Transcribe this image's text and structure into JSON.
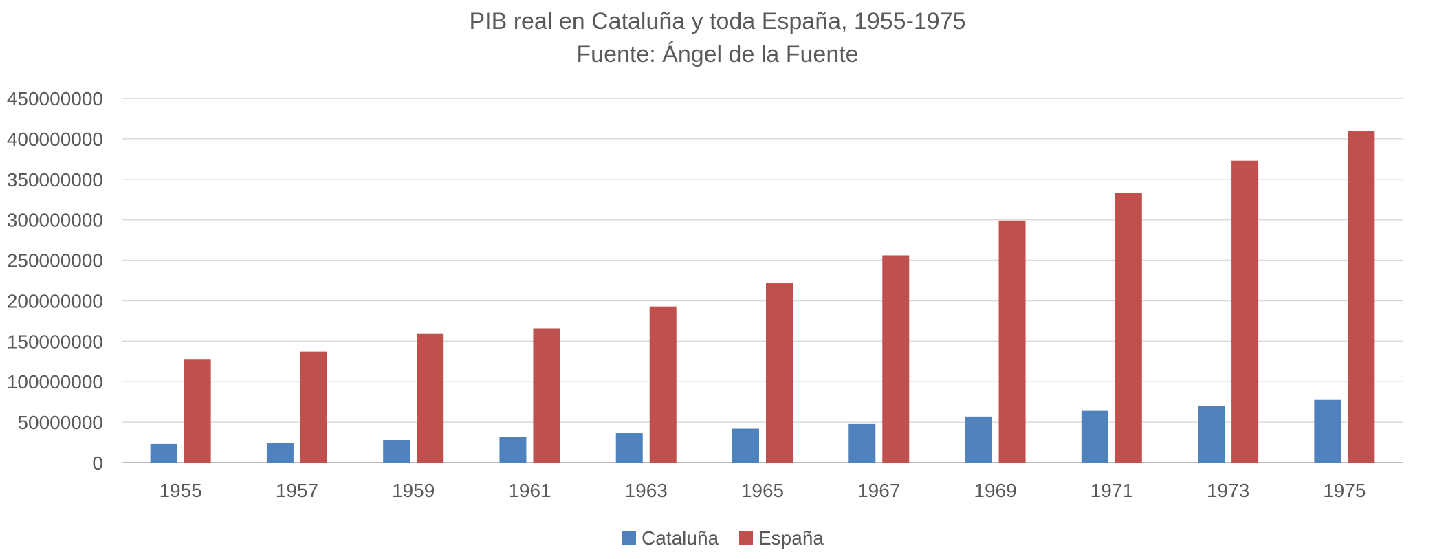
{
  "chart_data": {
    "type": "bar",
    "title": "PIB real en Cataluña y toda España, 1955-1975",
    "subtitle": "Fuente: Ángel de la Fuente",
    "xlabel": "",
    "ylabel": "",
    "ylim": [
      0,
      450000000
    ],
    "yticks": [
      "0",
      "50000000",
      "100000000",
      "150000000",
      "200000000",
      "250000000",
      "300000000",
      "350000000",
      "400000000",
      "450000000"
    ],
    "categories": [
      "1955",
      "1957",
      "1959",
      "1961",
      "1963",
      "1965",
      "1967",
      "1969",
      "1971",
      "1973",
      "1975"
    ],
    "series": [
      {
        "name": "Cataluña",
        "color": "#4F81BD",
        "values": [
          23000000,
          24500000,
          28000000,
          31500000,
          36500000,
          42000000,
          48500000,
          57000000,
          64000000,
          70500000,
          77500000
        ]
      },
      {
        "name": "España",
        "color": "#C0504D",
        "values": [
          128000000,
          137000000,
          159000000,
          166000000,
          193000000,
          222000000,
          256000000,
          299000000,
          333000000,
          373000000,
          410000000
        ]
      }
    ],
    "grid": true,
    "legend": "bottom-center"
  }
}
